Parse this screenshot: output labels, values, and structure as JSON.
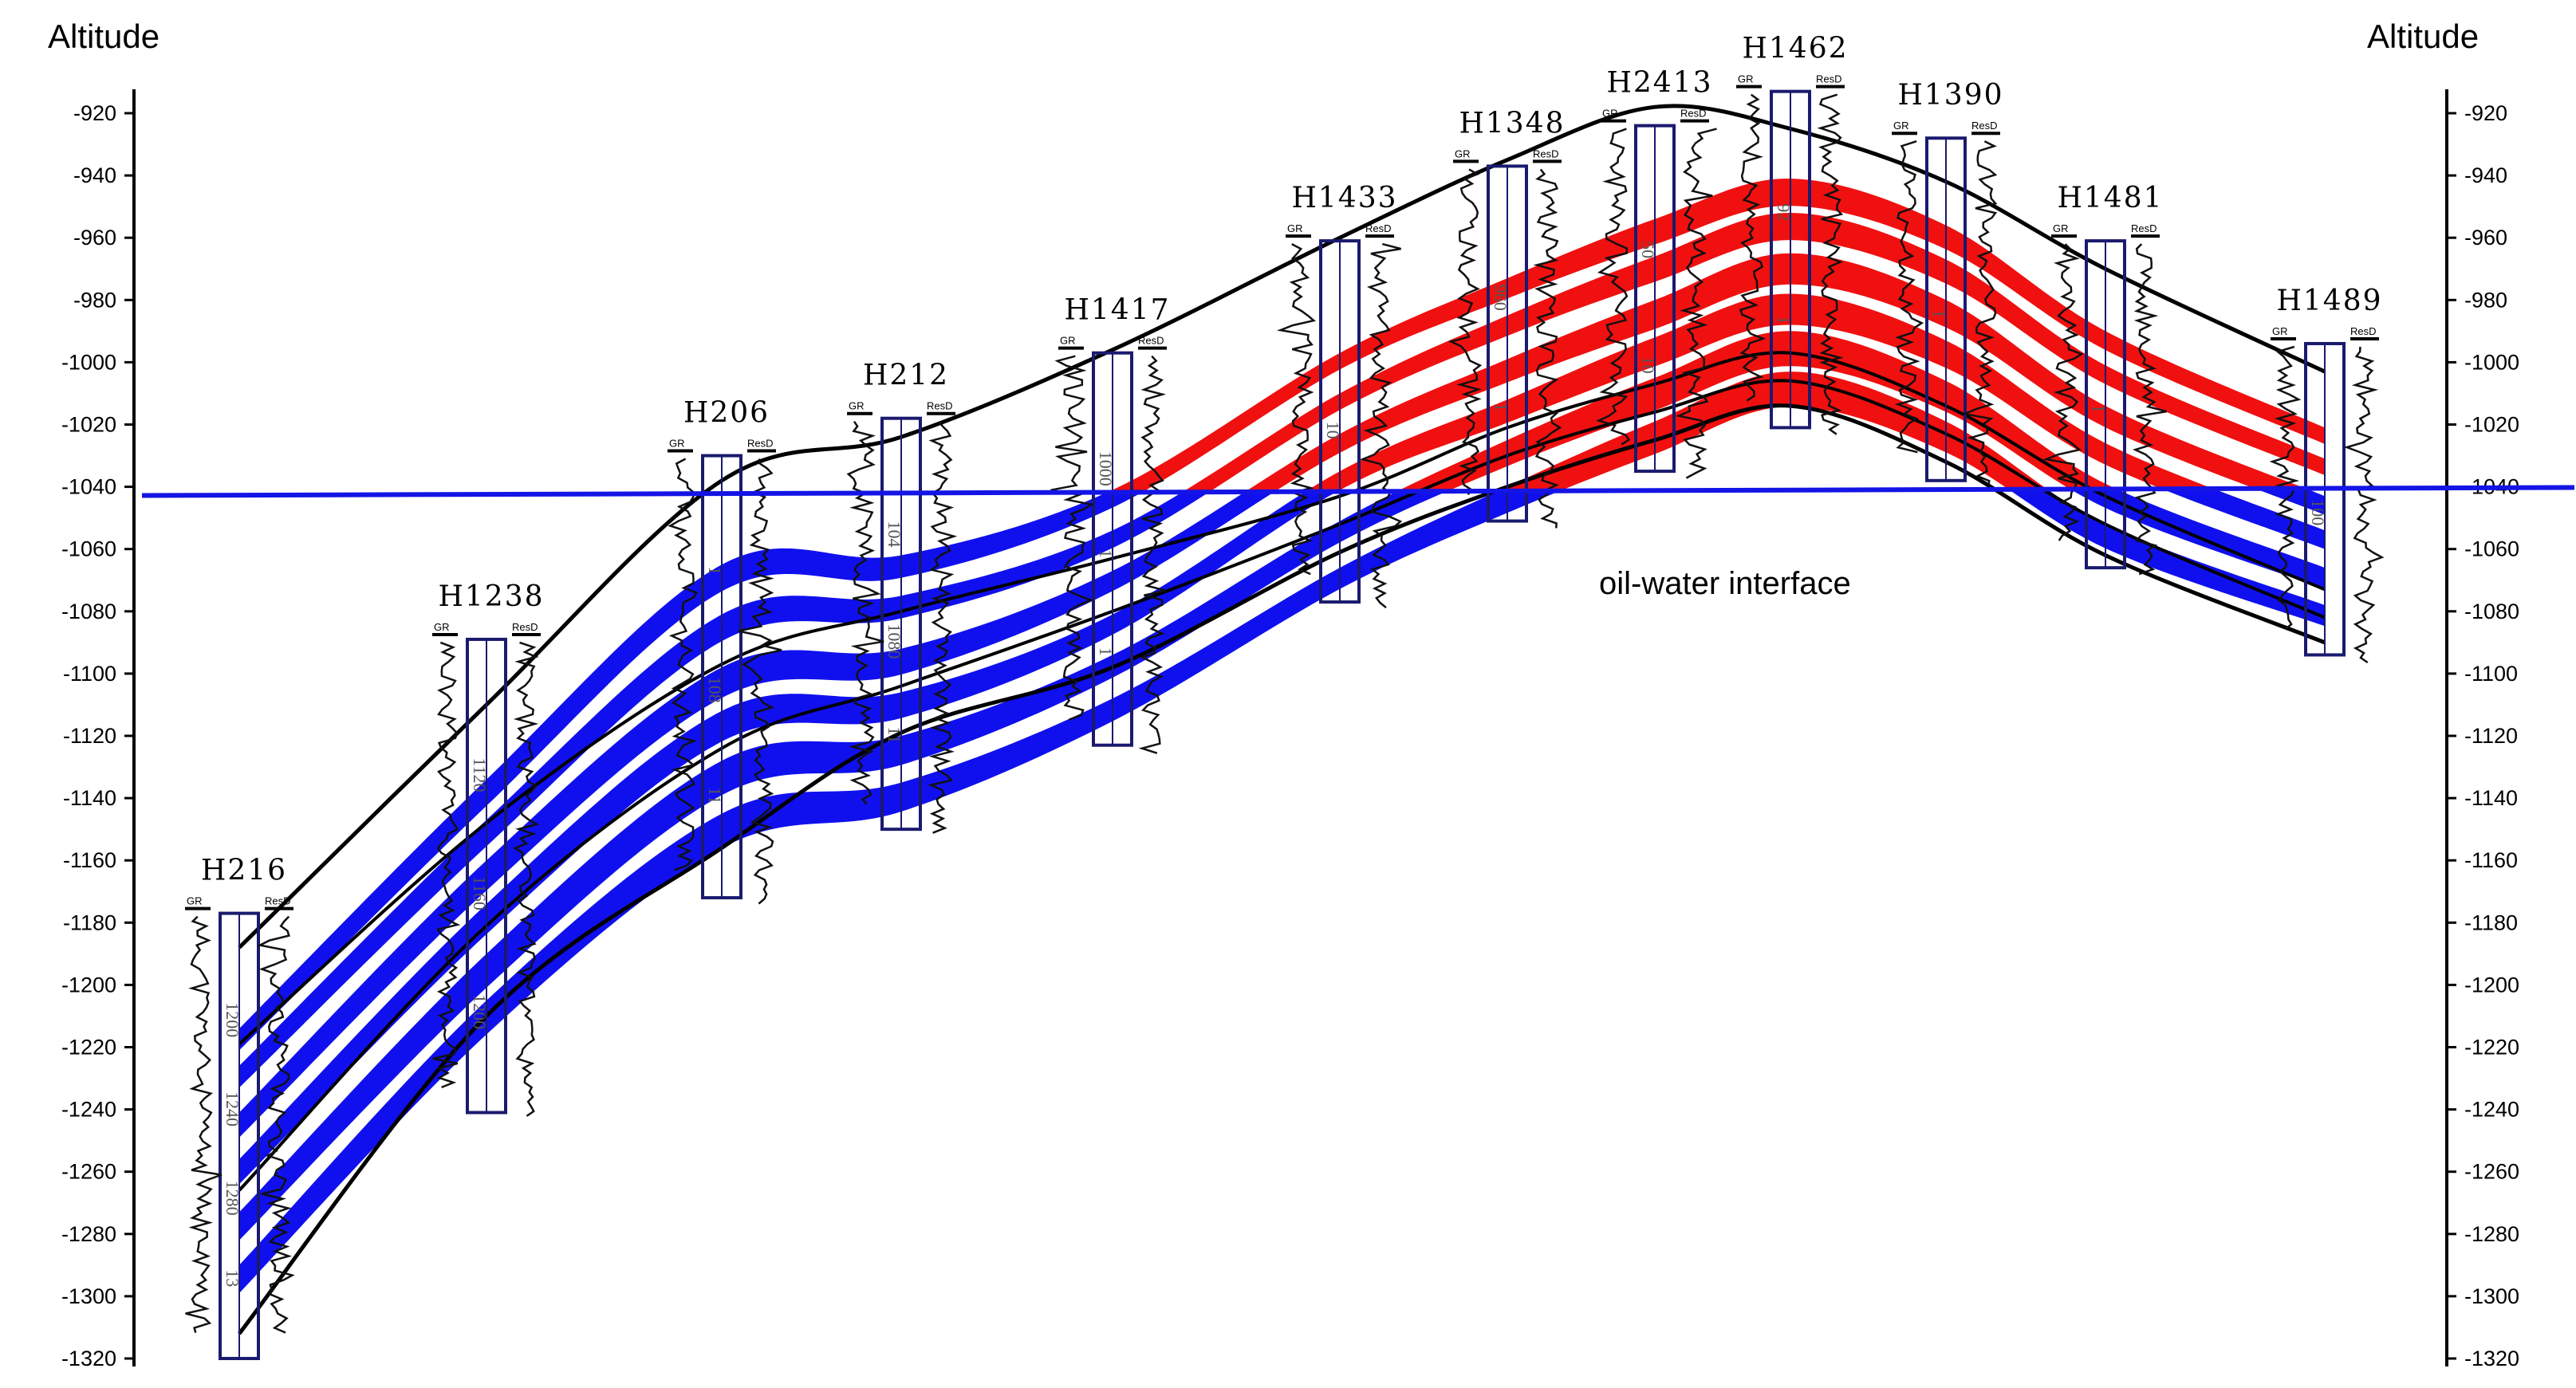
{
  "axis": {
    "left_title": "Altitude",
    "right_title": "Altitude",
    "min": -1320,
    "max": -920,
    "step": 20,
    "ticks": [
      "-920",
      "-940",
      "-960",
      "-980",
      "-1000",
      "-1020",
      "-1040",
      "-1060",
      "-1080",
      "-1100",
      "-1120",
      "-1140",
      "-1160",
      "-1180",
      "-1200",
      "-1220",
      "-1240",
      "-1260",
      "-1280",
      "-1300",
      "-1320"
    ]
  },
  "oil_water_interface": {
    "label": "oil-water interface",
    "altitude": -1041,
    "color": "#1414e6"
  },
  "colors": {
    "oil_layer": "#f01010",
    "water_layer": "#1010ee",
    "boundary": "#000000",
    "well_column": "#1a1a6e"
  },
  "log_headers": {
    "left": "GR",
    "right": "ResD"
  },
  "wells": [
    {
      "name": "H216",
      "top_altitude": -1177,
      "base_altitude": -1320,
      "depth_marks": [
        "1200",
        "1240",
        "1280",
        "13"
      ]
    },
    {
      "name": "H1238",
      "top_altitude": -1089,
      "base_altitude": -1241,
      "depth_marks": [
        "1120",
        "1160",
        "1200"
      ]
    },
    {
      "name": "H206",
      "top_altitude": -1030,
      "base_altitude": -1172,
      "depth_marks": [
        "1",
        "108",
        "11"
      ]
    },
    {
      "name": "H212",
      "top_altitude": -1018,
      "base_altitude": -1150,
      "depth_marks": [
        "104",
        "1080",
        "11"
      ]
    },
    {
      "name": "H1417",
      "top_altitude": -997,
      "base_altitude": -1123,
      "depth_marks": [
        "1000",
        "1",
        "1"
      ]
    },
    {
      "name": "H1433",
      "top_altitude": -961,
      "base_altitude": -1077,
      "depth_marks": [
        "10"
      ]
    },
    {
      "name": "H1348",
      "top_altitude": -937,
      "base_altitude": -1051,
      "depth_marks": [
        "960",
        "1"
      ]
    },
    {
      "name": "H2413",
      "top_altitude": -924,
      "base_altitude": -1035,
      "depth_marks": [
        "50",
        "10"
      ]
    },
    {
      "name": "H1462",
      "top_altitude": -913,
      "base_altitude": -1021,
      "depth_marks": [
        "92",
        "1"
      ]
    },
    {
      "name": "H1390",
      "top_altitude": -928,
      "base_altitude": -1038,
      "depth_marks": [
        "1"
      ]
    },
    {
      "name": "H1481",
      "top_altitude": -961,
      "base_altitude": -1066,
      "depth_marks": [
        "1"
      ]
    },
    {
      "name": "H1489",
      "top_altitude": -994,
      "base_altitude": -1094,
      "depth_marks": [
        "100"
      ]
    }
  ],
  "horizons": {
    "top_boundary": [
      -1188,
      -1110,
      -1038,
      -1024,
      -996,
      -960,
      -935,
      -918,
      -925,
      -942,
      -970,
      -1003
    ],
    "base_boundary": [
      -1312,
      -1210,
      -1156,
      -1119,
      -1098,
      -1061,
      -1040,
      -1025,
      -1014,
      -1032,
      -1062,
      -1090
    ],
    "inner_boundaries": [
      [
        -1219,
        -1148,
        -1097,
        -1080,
        -1063,
        -1043,
        -1021,
        -1007,
        -997,
        -1014,
        -1043,
        -1073
      ],
      [
        -1266,
        -1181,
        -1124,
        -1104,
        -1080,
        -1052,
        -1030,
        -1016,
        -1006,
        -1023,
        -1052,
        -1082
      ]
    ],
    "layers": [
      {
        "top": [
          -1214,
          -1134,
          -1065,
          -1062,
          -1041,
          -997,
          -973,
          -954,
          -941,
          -956,
          -990,
          -1021
        ],
        "thickness": 7
      },
      {
        "top": [
          -1226,
          -1147,
          -1081,
          -1075,
          -1054,
          -1010,
          -985,
          -966,
          -952,
          -967,
          -1001,
          -1031
        ],
        "thickness": 7
      },
      {
        "top": [
          -1241,
          -1160,
          -1098,
          -1092,
          -1067,
          -1023,
          -999,
          -980,
          -965,
          -980,
          -1014,
          -1043
        ],
        "thickness": 8
      },
      {
        "top": [
          -1256,
          -1174,
          -1112,
          -1106,
          -1081,
          -1035,
          -1012,
          -992,
          -978,
          -993,
          -1026,
          -1054
        ],
        "thickness": 8
      },
      {
        "top": [
          -1273,
          -1190,
          -1128,
          -1120,
          -1094,
          -1051,
          -1025,
          -1005,
          -990,
          -1006,
          -1039,
          -1066
        ],
        "thickness": 9
      },
      {
        "top": [
          -1290,
          -1205,
          -1145,
          -1135,
          -1108,
          -1066,
          -1040,
          -1019,
          -1003,
          -1019,
          -1052,
          -1078
        ],
        "thickness": 9
      }
    ]
  }
}
